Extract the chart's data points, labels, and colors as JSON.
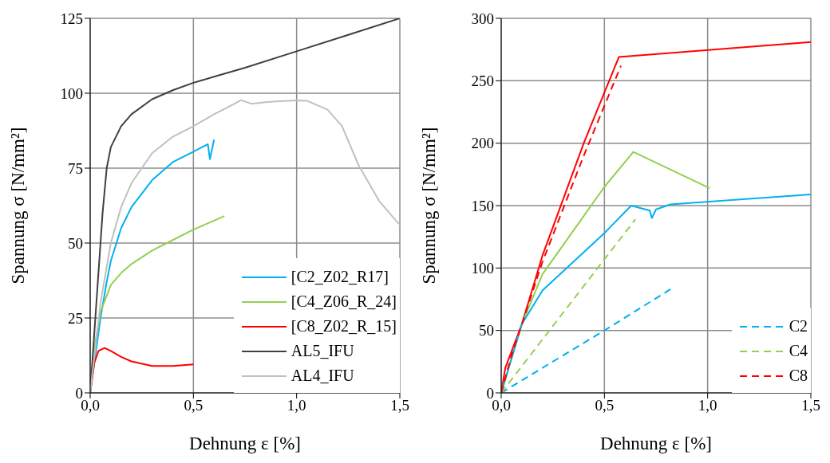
{
  "chart_data": [
    {
      "type": "line",
      "xlabel": "Dehnung ε [%]",
      "ylabel": "Spannung σ [N/mm²]",
      "xlim": [
        0,
        1.5
      ],
      "xticks": [
        {
          "value": 0,
          "label": "0,0"
        },
        {
          "value": 0.5,
          "label": "0,5"
        },
        {
          "value": 1,
          "label": "1,0"
        },
        {
          "value": 1.5,
          "label": "1,5"
        }
      ],
      "ylim": [
        0,
        125
      ],
      "yticks": [
        0,
        25,
        50,
        75,
        100,
        125
      ],
      "grid": true,
      "legend": "bottom right",
      "line_style": "solid",
      "series": [
        {
          "name": "[C2_Z02_R17]",
          "color": "#00b0f0",
          "x": [
            0,
            0.02,
            0.05,
            0.08,
            0.1,
            0.15,
            0.2,
            0.3,
            0.4,
            0.5,
            0.57,
            0.58,
            0.6
          ],
          "values": [
            0,
            10,
            25,
            37,
            44,
            55,
            62,
            71,
            77,
            80.5,
            83,
            78,
            84.5
          ]
        },
        {
          "name": "[C4_Z06_R_24]",
          "color": "#92d050",
          "x": [
            0,
            0.02,
            0.05,
            0.1,
            0.15,
            0.2,
            0.3,
            0.4,
            0.5,
            0.6,
            0.65
          ],
          "values": [
            0,
            15,
            27,
            36,
            40,
            43,
            47.5,
            51,
            54.5,
            57.5,
            59
          ]
        },
        {
          "name": "[C8_Z02_R_15]",
          "color": "#ff0000",
          "x": [
            0,
            0.02,
            0.04,
            0.07,
            0.1,
            0.15,
            0.2,
            0.3,
            0.4,
            0.5
          ],
          "values": [
            0,
            10,
            14,
            15,
            14,
            12,
            10.5,
            9,
            9,
            9.5
          ]
        },
        {
          "name": "AL5_IFU",
          "color": "#404040",
          "x": [
            0,
            0.03,
            0.06,
            0.08,
            0.1,
            0.15,
            0.2,
            0.3,
            0.4,
            0.5,
            0.6,
            0.75,
            1.0,
            1.25,
            1.5
          ],
          "values": [
            0,
            30,
            60,
            75,
            82,
            89,
            93,
            98,
            101,
            103.5,
            105.5,
            108.5,
            114,
            119.5,
            125
          ]
        },
        {
          "name": "AL4_IFU",
          "color": "#c0c0c0",
          "x": [
            0,
            0.05,
            0.1,
            0.15,
            0.2,
            0.3,
            0.4,
            0.5,
            0.6,
            0.7,
            0.73,
            0.78,
            0.85,
            0.9,
            1.0,
            1.05,
            1.15,
            1.22,
            1.3,
            1.4,
            1.5
          ],
          "values": [
            0,
            30,
            50,
            62,
            70,
            80,
            85.5,
            89,
            93,
            96.5,
            97.7,
            96.5,
            97,
            97.3,
            97.6,
            97.5,
            94.5,
            89,
            76,
            64,
            56
          ]
        }
      ]
    },
    {
      "type": "line",
      "xlabel": "Dehnung ε [%]",
      "ylabel": "Spannung σ [N/mm²]",
      "xlim": [
        0,
        1.5
      ],
      "xticks": [
        {
          "value": 0,
          "label": "0,0"
        },
        {
          "value": 0.5,
          "label": "0,5"
        },
        {
          "value": 1,
          "label": "1,0"
        },
        {
          "value": 1.5,
          "label": "1,5"
        }
      ],
      "ylim": [
        0,
        300
      ],
      "yticks": [
        0,
        50,
        100,
        150,
        200,
        250,
        300
      ],
      "grid": true,
      "legend": "bottom right",
      "series": [
        {
          "color": "#ff0000",
          "line_style": "solid",
          "x": [
            0,
            0.02,
            0.1,
            0.2,
            0.4,
            0.57,
            1.5
          ],
          "values": [
            0,
            20,
            55,
            110,
            200,
            269,
            281
          ]
        },
        {
          "color": "#92d050",
          "line_style": "solid",
          "x": [
            0,
            0.1,
            0.2,
            0.5,
            0.64,
            1.01
          ],
          "values": [
            0,
            55,
            95,
            165,
            193,
            164
          ]
        },
        {
          "color": "#00b0f0",
          "line_style": "solid",
          "x": [
            0,
            0.1,
            0.2,
            0.5,
            0.63,
            0.72,
            0.73,
            0.75,
            0.82,
            1.5
          ],
          "values": [
            0,
            55,
            82,
            128,
            150,
            146,
            140,
            147,
            151,
            159
          ]
        },
        {
          "name": "C2",
          "color": "#00b0f0",
          "line_style": "dashed",
          "x": [
            0,
            0.5,
            0.82
          ],
          "values": [
            0,
            50,
            83
          ]
        },
        {
          "name": "C4",
          "color": "#92d050",
          "line_style": "dashed",
          "x": [
            0,
            0.5,
            0.65
          ],
          "values": [
            0,
            107,
            139
          ]
        },
        {
          "name": "C8",
          "color": "#ff0000",
          "line_style": "dashed",
          "x": [
            0,
            0.05,
            0.2,
            0.4,
            0.58
          ],
          "values": [
            0,
            30,
            105,
            190,
            262
          ]
        }
      ]
    }
  ]
}
